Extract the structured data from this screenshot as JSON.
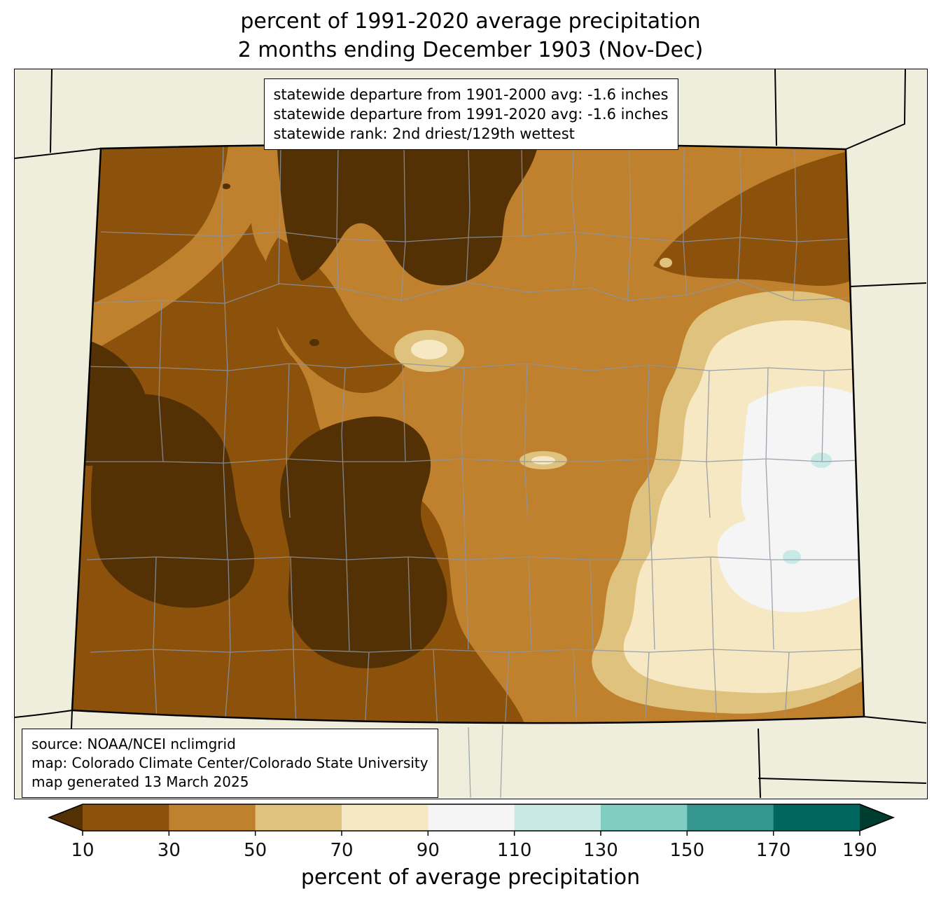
{
  "title": {
    "line1": "percent of 1991-2020 average precipitation",
    "line2": "2 months ending December 1903 (Nov-Dec)"
  },
  "stats_box": {
    "lines": [
      "statewide departure from 1901-2000 avg: -1.6 inches",
      "statewide departure from 1991-2020 avg: -1.6 inches",
      "statewide rank: 2nd driest/129th wettest"
    ]
  },
  "credits_box": {
    "lines": [
      "source: NOAA/NCEI nclimgrid",
      "map: Colorado Climate Center/Colorado State University",
      "map generated 13 March 2025"
    ]
  },
  "colorbar": {
    "label": "percent of average precipitation",
    "tick_labels": [
      "10",
      "30",
      "50",
      "70",
      "90",
      "110",
      "130",
      "150",
      "170",
      "190"
    ],
    "segment_colors": [
      "#8c510a",
      "#bf812d",
      "#dfc27d",
      "#f6e8c3",
      "#f5f5f5",
      "#c7eae5",
      "#80cdc1",
      "#35978f",
      "#01665e"
    ],
    "under_arrow_color": "#543005",
    "over_arrow_color": "#003c30"
  },
  "palette": {
    "lt10": "#543005",
    "p10_30": "#8c510a",
    "p30_50": "#bf812d",
    "p50_70": "#dfc27d",
    "p70_90": "#f6e8c3",
    "p90_110": "#f5f5f5",
    "p110_130": "#c7eae5"
  },
  "map": {
    "region": "Colorado",
    "background_color": "#efeedd",
    "county_line_color": "#8d95a2",
    "state_border_color": "#000000"
  }
}
